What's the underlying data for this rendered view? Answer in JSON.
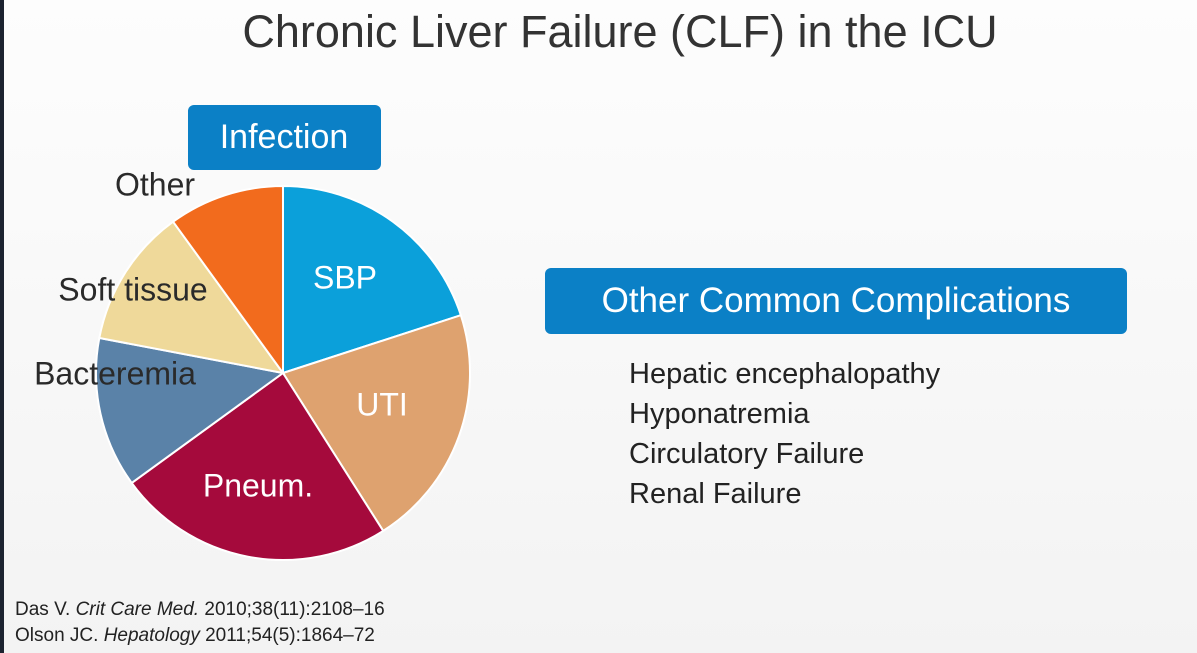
{
  "slide_title": "Chronic Liver Failure (CLF) in the ICU",
  "chart_data": {
    "type": "pie",
    "title": "Infection",
    "categories": [
      "SBP",
      "UTI",
      "Pneum.",
      "Bacteremia",
      "Soft tissue",
      "Other"
    ],
    "values": [
      20,
      21,
      24,
      13,
      12,
      10
    ],
    "colors": [
      "#0ba0da",
      "#dea26f",
      "#a50a3c",
      "#5a82a8",
      "#efd99a",
      "#f26b1d"
    ]
  },
  "complications": {
    "heading": "Other Common Complications",
    "items": [
      "Hepatic encephalopathy",
      "Hyponatremia",
      "Circulatory Failure",
      "Renal Failure"
    ]
  },
  "references": [
    {
      "author": "Das V.",
      "journal": "Crit Care Med.",
      "citation": "2010;38(11):2108–16"
    },
    {
      "author": "Olson JC.",
      "journal": "Hepatology",
      "citation": "2011;54(5):1864–72"
    }
  ]
}
